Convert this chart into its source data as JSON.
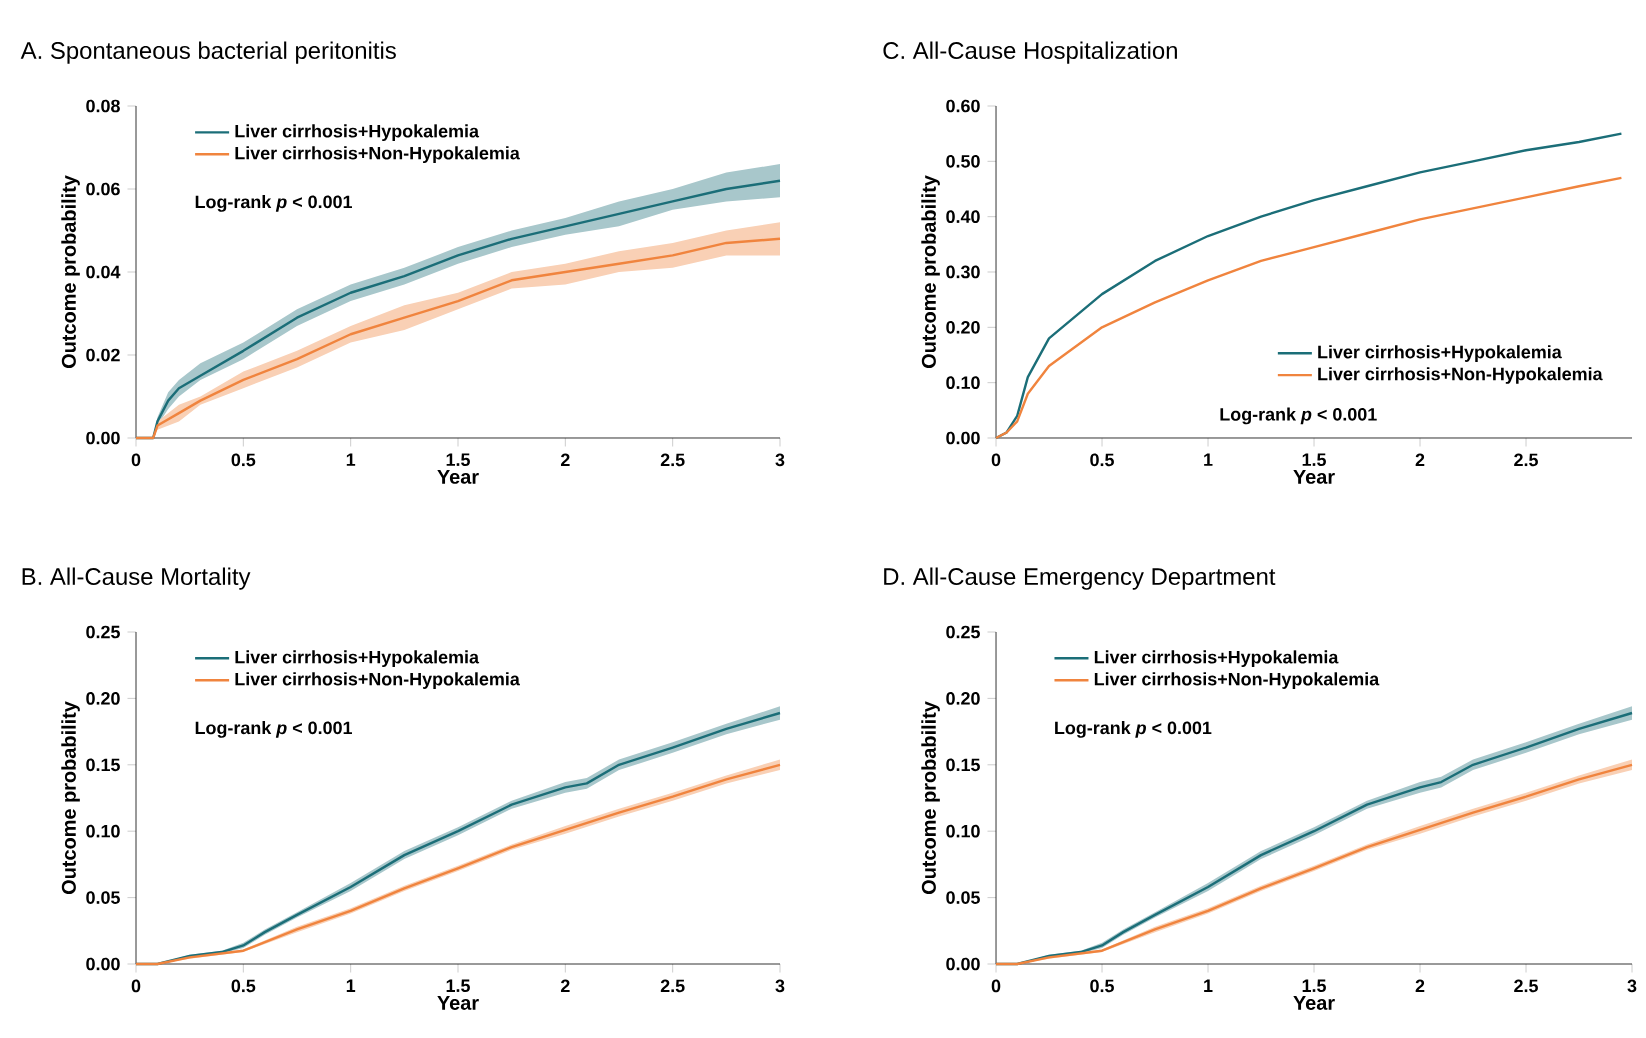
{
  "chart_data": [
    {
      "type": "line",
      "title": "A. Spontaneous bacterial peritonitis",
      "xlabel": "Year",
      "ylabel": "Outcome probability",
      "xlim": [
        0,
        3
      ],
      "xticks": [
        0,
        0.5,
        1,
        1.5,
        2,
        2.5,
        3
      ],
      "ylim": [
        0,
        0.08
      ],
      "yticks": [
        {
          "value": 0,
          "label": "0.00"
        },
        {
          "value": 0.02,
          "label": "0.02"
        },
        {
          "value": 0.04,
          "label": "0.04"
        },
        {
          "value": 0.06,
          "label": "0.06"
        },
        {
          "value": 0.08,
          "label": "0.08"
        }
      ],
      "legend": "top left",
      "annotations": [
        "Log-rank *p* < 0.001"
      ],
      "series": [
        {
          "name": "Liver cirrhosis+Hypokalemia",
          "color": "#1b6e78",
          "x": [
            0,
            0.08,
            0.1,
            0.15,
            0.2,
            0.3,
            0.5,
            0.75,
            1,
            1.25,
            1.5,
            1.75,
            2,
            2.25,
            2.5,
            2.75,
            3
          ],
          "values": [
            0,
            0,
            0.004,
            0.009,
            0.012,
            0.015,
            0.021,
            0.029,
            0.035,
            0.039,
            0.044,
            0.048,
            0.051,
            0.054,
            0.057,
            0.06,
            0.062
          ],
          "lower": [
            0,
            0,
            0.003,
            0.007,
            0.01,
            0.014,
            0.019,
            0.027,
            0.033,
            0.037,
            0.042,
            0.046,
            0.049,
            0.051,
            0.055,
            0.057,
            0.058
          ],
          "upper": [
            0,
            0,
            0.005,
            0.011,
            0.014,
            0.018,
            0.023,
            0.031,
            0.037,
            0.041,
            0.046,
            0.05,
            0.053,
            0.057,
            0.06,
            0.064,
            0.066
          ]
        },
        {
          "name": "Liver cirrhosis+Non-Hypokalemia",
          "color": "#f0843e",
          "x": [
            0,
            0.08,
            0.1,
            0.2,
            0.3,
            0.5,
            0.75,
            1,
            1.25,
            1.5,
            1.75,
            2,
            2.25,
            2.5,
            2.75,
            3
          ],
          "values": [
            0,
            0,
            0.003,
            0.006,
            0.009,
            0.014,
            0.019,
            0.025,
            0.029,
            0.033,
            0.038,
            0.04,
            0.042,
            0.044,
            0.047,
            0.048
          ],
          "lower": [
            0,
            0,
            0.002,
            0.004,
            0.008,
            0.012,
            0.017,
            0.023,
            0.026,
            0.031,
            0.036,
            0.037,
            0.04,
            0.041,
            0.044,
            0.044
          ],
          "upper": [
            0,
            0,
            0.004,
            0.008,
            0.01,
            0.016,
            0.021,
            0.027,
            0.032,
            0.035,
            0.04,
            0.042,
            0.045,
            0.047,
            0.05,
            0.052
          ]
        }
      ]
    },
    {
      "type": "line",
      "title": "C. All-Cause Hospitalization",
      "xlabel": "Year",
      "ylabel": "Outcome probability",
      "xlim": [
        0,
        3
      ],
      "xticks": [
        0,
        0.5,
        1,
        1.5,
        2,
        2.5
      ],
      "ylim": [
        0,
        0.6
      ],
      "yticks": [
        {
          "value": 0,
          "label": "0.00"
        },
        {
          "value": 0.1,
          "label": "0.10"
        },
        {
          "value": 0.2,
          "label": "0.20"
        },
        {
          "value": 0.3,
          "label": "0.30"
        },
        {
          "value": 0.4,
          "label": "0.40"
        },
        {
          "value": 0.5,
          "label": "0.50"
        },
        {
          "value": 0.6,
          "label": "0.60"
        }
      ],
      "legend": "bottom right",
      "annotations": [
        "Log-rank *p* < 0.001"
      ],
      "series": [
        {
          "name": "Liver cirrhosis+Hypokalemia",
          "color": "#1b6e78",
          "x": [
            0,
            0.05,
            0.1,
            0.15,
            0.25,
            0.5,
            0.75,
            1,
            1.25,
            1.5,
            1.75,
            2,
            2.25,
            2.5,
            2.75,
            2.95
          ],
          "values": [
            0,
            0.01,
            0.04,
            0.11,
            0.18,
            0.26,
            0.32,
            0.365,
            0.4,
            0.43,
            0.455,
            0.48,
            0.5,
            0.52,
            0.535,
            0.55
          ]
        },
        {
          "name": "Liver cirrhosis+Non-Hypokalemia",
          "color": "#f0843e",
          "x": [
            0,
            0.05,
            0.1,
            0.15,
            0.25,
            0.5,
            0.75,
            1,
            1.25,
            1.5,
            1.75,
            2,
            2.25,
            2.5,
            2.75,
            2.95
          ],
          "values": [
            0,
            0.01,
            0.03,
            0.08,
            0.13,
            0.2,
            0.245,
            0.285,
            0.32,
            0.345,
            0.37,
            0.395,
            0.415,
            0.435,
            0.455,
            0.47
          ]
        }
      ]
    },
    {
      "type": "line",
      "title": "B. All-Cause Mortality",
      "xlabel": "Year",
      "ylabel": "Outcome probability",
      "xlim": [
        0,
        3
      ],
      "xticks": [
        0,
        0.5,
        1,
        1.5,
        2,
        2.5,
        3
      ],
      "ylim": [
        0,
        0.25
      ],
      "yticks": [
        {
          "value": 0,
          "label": "0.00"
        },
        {
          "value": 0.05,
          "label": "0.05"
        },
        {
          "value": 0.1,
          "label": "0.10"
        },
        {
          "value": 0.15,
          "label": "0.15"
        },
        {
          "value": 0.2,
          "label": "0.20"
        },
        {
          "value": 0.25,
          "label": "0.25"
        }
      ],
      "legend": "top left",
      "annotations": [
        "Log-rank *p* < 0.001"
      ],
      "series": [
        {
          "name": "Liver cirrhosis+Hypokalemia",
          "color": "#1b6e78",
          "x": [
            0,
            0.1,
            0.25,
            0.4,
            0.5,
            0.6,
            0.75,
            1,
            1.25,
            1.5,
            1.75,
            2,
            2.1,
            2.25,
            2.5,
            2.75,
            3
          ],
          "values": [
            0,
            0,
            0.006,
            0.009,
            0.014,
            0.024,
            0.037,
            0.058,
            0.082,
            0.1,
            0.12,
            0.133,
            0.136,
            0.15,
            0.163,
            0.177,
            0.189
          ],
          "lower": [
            0,
            0,
            0.005,
            0.008,
            0.012,
            0.022,
            0.035,
            0.055,
            0.079,
            0.097,
            0.117,
            0.129,
            0.132,
            0.146,
            0.159,
            0.173,
            0.184
          ],
          "upper": [
            0,
            0,
            0.007,
            0.01,
            0.016,
            0.026,
            0.039,
            0.061,
            0.085,
            0.103,
            0.123,
            0.137,
            0.14,
            0.154,
            0.167,
            0.181,
            0.194
          ]
        },
        {
          "name": "Liver cirrhosis+Non-Hypokalemia",
          "color": "#f0843e",
          "x": [
            0,
            0.1,
            0.25,
            0.5,
            0.75,
            1,
            1.25,
            1.5,
            1.75,
            2,
            2.25,
            2.5,
            2.75,
            3
          ],
          "values": [
            0,
            0,
            0.005,
            0.01,
            0.026,
            0.04,
            0.057,
            0.072,
            0.088,
            0.101,
            0.114,
            0.126,
            0.139,
            0.15
          ],
          "lower": [
            0,
            0,
            0.004,
            0.009,
            0.024,
            0.038,
            0.055,
            0.07,
            0.086,
            0.098,
            0.111,
            0.123,
            0.136,
            0.146
          ],
          "upper": [
            0,
            0,
            0.006,
            0.011,
            0.028,
            0.042,
            0.059,
            0.074,
            0.09,
            0.104,
            0.117,
            0.129,
            0.142,
            0.154
          ]
        }
      ]
    },
    {
      "type": "line",
      "title": "D. All-Cause Emergency Department",
      "xlabel": "Year",
      "ylabel": "Outcome probability",
      "xlim": [
        0,
        3
      ],
      "xticks": [
        0,
        0.5,
        1,
        1.5,
        2,
        2.5,
        3
      ],
      "ylim": [
        0,
        0.25
      ],
      "yticks": [
        {
          "value": 0,
          "label": "0.00"
        },
        {
          "value": 0.05,
          "label": "0.05"
        },
        {
          "value": 0.1,
          "label": "0.10"
        },
        {
          "value": 0.15,
          "label": "0.15"
        },
        {
          "value": 0.2,
          "label": "0.20"
        },
        {
          "value": 0.25,
          "label": "0.25"
        }
      ],
      "legend": "top left",
      "annotations": [
        "Log-rank *p* < 0.001"
      ],
      "series": [
        {
          "name": "Liver cirrhosis+Hypokalemia",
          "color": "#1b6e78",
          "x": [
            0,
            0.1,
            0.25,
            0.4,
            0.5,
            0.6,
            0.75,
            1,
            1.25,
            1.5,
            1.75,
            2,
            2.1,
            2.25,
            2.5,
            2.75,
            3
          ],
          "values": [
            0,
            0,
            0.006,
            0.009,
            0.014,
            0.024,
            0.037,
            0.058,
            0.082,
            0.1,
            0.12,
            0.133,
            0.137,
            0.15,
            0.163,
            0.177,
            0.189
          ],
          "lower": [
            0,
            0,
            0.005,
            0.008,
            0.012,
            0.022,
            0.035,
            0.055,
            0.079,
            0.097,
            0.117,
            0.129,
            0.133,
            0.146,
            0.159,
            0.173,
            0.184
          ],
          "upper": [
            0,
            0,
            0.007,
            0.01,
            0.016,
            0.026,
            0.039,
            0.061,
            0.085,
            0.103,
            0.123,
            0.137,
            0.141,
            0.154,
            0.167,
            0.181,
            0.194
          ]
        },
        {
          "name": "Liver cirrhosis+Non-Hypokalemia",
          "color": "#f0843e",
          "x": [
            0,
            0.1,
            0.25,
            0.5,
            0.75,
            1,
            1.25,
            1.5,
            1.75,
            2,
            2.25,
            2.5,
            2.75,
            3
          ],
          "values": [
            0,
            0,
            0.005,
            0.01,
            0.026,
            0.04,
            0.057,
            0.072,
            0.088,
            0.101,
            0.114,
            0.126,
            0.139,
            0.15
          ],
          "lower": [
            0,
            0,
            0.004,
            0.009,
            0.024,
            0.038,
            0.055,
            0.07,
            0.086,
            0.098,
            0.111,
            0.123,
            0.136,
            0.146
          ],
          "upper": [
            0,
            0,
            0.006,
            0.011,
            0.028,
            0.042,
            0.059,
            0.074,
            0.09,
            0.104,
            0.117,
            0.129,
            0.142,
            0.154
          ]
        }
      ]
    }
  ]
}
